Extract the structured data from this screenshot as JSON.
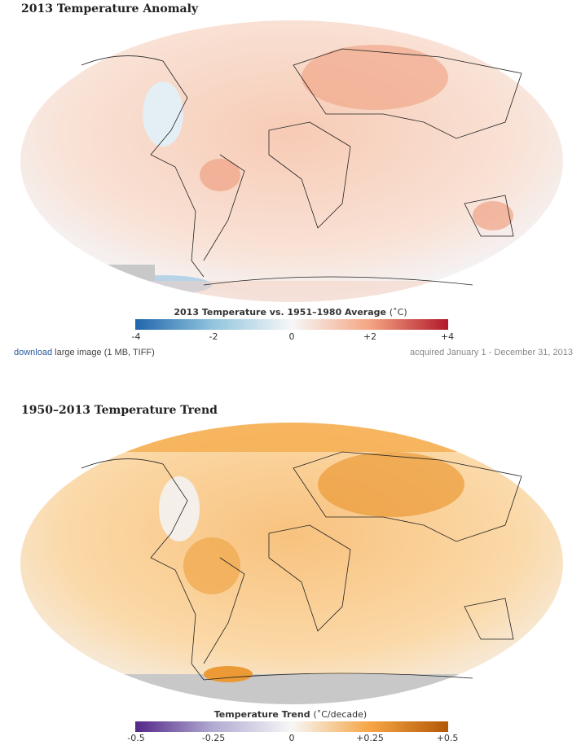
{
  "map1": {
    "title": "2013 Temperature Anomaly",
    "legend_title": "2013 Temperature vs. 1951–1980 Average",
    "legend_unit": "(˚C)",
    "ticks": [
      "-4",
      "-2",
      "0",
      "+2",
      "+4"
    ],
    "colors": [
      "#2166ac",
      "#92c5de",
      "#f7f7f7",
      "#f4a582",
      "#b2182b"
    ]
  },
  "download": {
    "link": "download",
    "text": "large image (1 MB, TIFF)"
  },
  "acquired": "acquired January 1 - December 31, 2013",
  "map2": {
    "title": "1950–2013 Temperature Trend",
    "legend_title": "Temperature Trend",
    "legend_unit": "(˚C/decade)",
    "ticks": [
      "-0.5",
      "-0.25",
      "0",
      "+0.25",
      "+0.5"
    ],
    "colors": [
      "#542788",
      "#b2abd2",
      "#f7f7f7",
      "#f6a544",
      "#b35806"
    ]
  }
}
